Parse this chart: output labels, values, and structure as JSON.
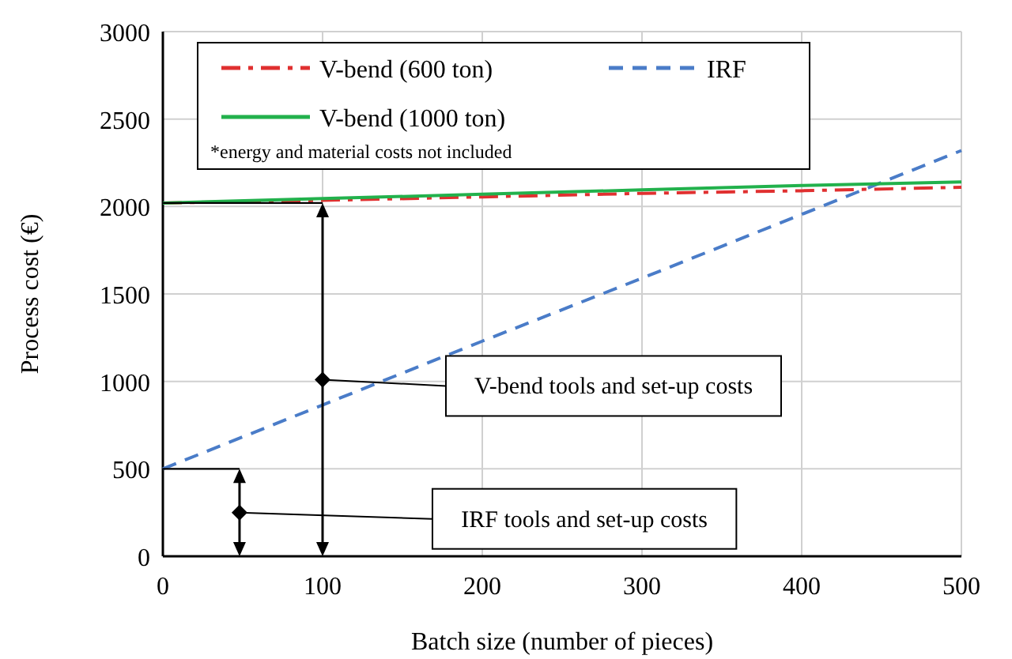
{
  "chart_data": {
    "type": "line",
    "xlabel": "Batch size (number of pieces)",
    "ylabel": "Process cost (€)",
    "x": [
      0,
      100,
      200,
      300,
      400,
      500
    ],
    "series": [
      {
        "name": "V-bend (600 ton)",
        "color": "#e03030",
        "line_style": "dashdot",
        "values": [
          2020,
          2035,
          2055,
          2075,
          2090,
          2110
        ]
      },
      {
        "name": "IRF",
        "color": "#4a7cc8",
        "line_style": "dashed",
        "values": [
          500,
          865,
          1230,
          1590,
          1955,
          2320
        ]
      },
      {
        "name": "V-bend (1000 ton)",
        "color": "#22b14c",
        "line_style": "solid",
        "values": [
          2020,
          2045,
          2070,
          2095,
          2120,
          2140
        ]
      }
    ],
    "xlim": [
      0,
      500
    ],
    "xticks": [
      0,
      100,
      200,
      300,
      400,
      500
    ],
    "ylim": [
      0,
      3000
    ],
    "yticks": [
      0,
      500,
      1000,
      1500,
      2000,
      2500,
      3000
    ],
    "grid": true,
    "legend": "top left",
    "marker": "none",
    "annotations": [
      "*energy and material costs not included",
      {
        "text": "V-bend tools  and set-up costs",
        "x": 100,
        "y": 1010
      },
      {
        "text": "IRF tools  and set-up costs",
        "x": 48,
        "y": 250
      }
    ]
  }
}
